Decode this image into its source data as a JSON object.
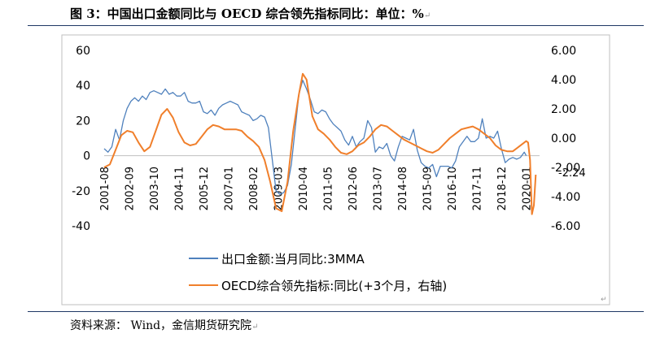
{
  "header": {
    "title": "图 3：中国出口金额同比与 OECD 综合领先指标同比：单位：%",
    "title_mark": "↵"
  },
  "footer": {
    "source": "资料来源： Wind，金信期货研究院",
    "source_mark": "↵",
    "return_mark": "↵"
  },
  "chart_data": {
    "type": "line",
    "title": "",
    "left_axis": {
      "ylim": [
        -40,
        60
      ],
      "ticks": [
        "60",
        "40",
        "20",
        "0",
        "-20",
        "-40"
      ]
    },
    "right_axis": {
      "ylim": [
        -6,
        6
      ],
      "ticks": [
        "6.00",
        "4.00",
        "2.00",
        "0.00",
        "-2.00",
        "-4.00",
        "-6.00"
      ]
    },
    "x_ticks": [
      "2001-08",
      "2002-09",
      "2003-10",
      "2004-11",
      "2005-12",
      "2007-01",
      "2008-02",
      "2009-03",
      "2010-04",
      "2011-05",
      "2012-06",
      "2013-07",
      "2014-08",
      "2015-09",
      "2016-10",
      "2017-11",
      "2018-12",
      "2020-01"
    ],
    "annotation": "-2.24",
    "grid": false,
    "legend_position": "bottom",
    "colors": {
      "export": "#4f81bd",
      "oecd": "#f07f2b"
    },
    "series": [
      {
        "name": "出口金额:当月同比:3MMA",
        "axis": "left",
        "color": "#4f81bd",
        "points": [
          [
            "2001-08",
            4
          ],
          [
            "2001-10",
            2
          ],
          [
            "2001-12",
            5
          ],
          [
            "2002-02",
            15
          ],
          [
            "2002-04",
            9
          ],
          [
            "2002-06",
            20
          ],
          [
            "2002-08",
            27
          ],
          [
            "2002-10",
            31
          ],
          [
            "2002-12",
            33
          ],
          [
            "2003-02",
            31
          ],
          [
            "2003-04",
            34
          ],
          [
            "2003-06",
            32
          ],
          [
            "2003-08",
            36
          ],
          [
            "2003-10",
            37
          ],
          [
            "2003-12",
            36
          ],
          [
            "2004-02",
            35
          ],
          [
            "2004-04",
            38
          ],
          [
            "2004-06",
            35
          ],
          [
            "2004-08",
            36
          ],
          [
            "2004-10",
            34
          ],
          [
            "2004-12",
            34
          ],
          [
            "2005-02",
            36
          ],
          [
            "2005-04",
            31
          ],
          [
            "2005-06",
            30
          ],
          [
            "2005-08",
            30
          ],
          [
            "2005-10",
            31
          ],
          [
            "2005-12",
            25
          ],
          [
            "2006-02",
            24
          ],
          [
            "2006-04",
            26
          ],
          [
            "2006-06",
            23
          ],
          [
            "2006-08",
            27
          ],
          [
            "2006-10",
            29
          ],
          [
            "2006-12",
            30
          ],
          [
            "2007-02",
            31
          ],
          [
            "2007-04",
            30
          ],
          [
            "2007-06",
            29
          ],
          [
            "2007-08",
            25
          ],
          [
            "2007-10",
            24
          ],
          [
            "2007-12",
            23
          ],
          [
            "2008-02",
            20
          ],
          [
            "2008-04",
            21
          ],
          [
            "2008-06",
            23
          ],
          [
            "2008-08",
            22
          ],
          [
            "2008-10",
            16
          ],
          [
            "2008-12",
            -2
          ],
          [
            "2009-02",
            -20
          ],
          [
            "2009-04",
            -22
          ],
          [
            "2009-06",
            -21
          ],
          [
            "2009-08",
            -17
          ],
          [
            "2009-10",
            -5
          ],
          [
            "2009-12",
            15
          ],
          [
            "2010-02",
            35
          ],
          [
            "2010-04",
            43
          ],
          [
            "2010-06",
            38
          ],
          [
            "2010-08",
            32
          ],
          [
            "2010-10",
            25
          ],
          [
            "2010-12",
            24
          ],
          [
            "2011-02",
            26
          ],
          [
            "2011-04",
            25
          ],
          [
            "2011-06",
            21
          ],
          [
            "2011-08",
            18
          ],
          [
            "2011-10",
            16
          ],
          [
            "2011-12",
            14
          ],
          [
            "2012-02",
            9
          ],
          [
            "2012-04",
            6
          ],
          [
            "2012-06",
            11
          ],
          [
            "2012-08",
            5
          ],
          [
            "2012-10",
            8
          ],
          [
            "2012-12",
            10
          ],
          [
            "2013-02",
            20
          ],
          [
            "2013-04",
            16
          ],
          [
            "2013-06",
            2
          ],
          [
            "2013-08",
            5
          ],
          [
            "2013-10",
            4
          ],
          [
            "2013-12",
            7
          ],
          [
            "2014-02",
            0
          ],
          [
            "2014-04",
            -3
          ],
          [
            "2014-06",
            5
          ],
          [
            "2014-08",
            11
          ],
          [
            "2014-10",
            10
          ],
          [
            "2014-12",
            9
          ],
          [
            "2015-02",
            15
          ],
          [
            "2015-04",
            3
          ],
          [
            "2015-06",
            -4
          ],
          [
            "2015-08",
            -6
          ],
          [
            "2015-10",
            -7
          ],
          [
            "2015-12",
            -5
          ],
          [
            "2016-02",
            -12
          ],
          [
            "2016-04",
            -6
          ],
          [
            "2016-06",
            -6
          ],
          [
            "2016-08",
            -6
          ],
          [
            "2016-10",
            -7
          ],
          [
            "2016-12",
            -3
          ],
          [
            "2017-02",
            5
          ],
          [
            "2017-04",
            8
          ],
          [
            "2017-06",
            11
          ],
          [
            "2017-08",
            8
          ],
          [
            "2017-10",
            8
          ],
          [
            "2017-12",
            10
          ],
          [
            "2018-02",
            21
          ],
          [
            "2018-04",
            10
          ],
          [
            "2018-06",
            11
          ],
          [
            "2018-08",
            10
          ],
          [
            "2018-10",
            14
          ],
          [
            "2018-12",
            4
          ],
          [
            "2019-02",
            -4
          ],
          [
            "2019-04",
            -2
          ],
          [
            "2019-06",
            -1
          ],
          [
            "2019-08",
            -2
          ],
          [
            "2019-10",
            -1
          ],
          [
            "2019-12",
            2
          ],
          [
            "2020-01",
            0
          ]
        ]
      },
      {
        "name": "OECD综合领先指标:同比(+3个月，右轴)",
        "axis": "right",
        "color": "#f07f2b",
        "points": [
          [
            "2001-08",
            -2.0
          ],
          [
            "2001-11",
            -1.8
          ],
          [
            "2002-02",
            -0.8
          ],
          [
            "2002-05",
            0.2
          ],
          [
            "2002-08",
            0.5
          ],
          [
            "2002-11",
            0.4
          ],
          [
            "2003-02",
            -0.3
          ],
          [
            "2003-05",
            -0.9
          ],
          [
            "2003-08",
            -0.6
          ],
          [
            "2003-11",
            0.5
          ],
          [
            "2004-02",
            1.6
          ],
          [
            "2004-05",
            2.0
          ],
          [
            "2004-08",
            1.4
          ],
          [
            "2004-11",
            0.4
          ],
          [
            "2005-02",
            -0.3
          ],
          [
            "2005-05",
            -0.5
          ],
          [
            "2005-08",
            -0.4
          ],
          [
            "2005-11",
            0.1
          ],
          [
            "2006-02",
            0.6
          ],
          [
            "2006-05",
            0.9
          ],
          [
            "2006-08",
            0.8
          ],
          [
            "2006-11",
            0.6
          ],
          [
            "2007-02",
            0.6
          ],
          [
            "2007-05",
            0.6
          ],
          [
            "2007-08",
            0.5
          ],
          [
            "2007-11",
            0.1
          ],
          [
            "2008-02",
            -0.2
          ],
          [
            "2008-05",
            -0.6
          ],
          [
            "2008-08",
            -1.5
          ],
          [
            "2008-11",
            -3.0
          ],
          [
            "2009-02",
            -4.8
          ],
          [
            "2009-05",
            -5.0
          ],
          [
            "2009-08",
            -3.0
          ],
          [
            "2009-11",
            0.5
          ],
          [
            "2010-02",
            3.0
          ],
          [
            "2010-04",
            4.4
          ],
          [
            "2010-06",
            4.0
          ],
          [
            "2010-09",
            1.5
          ],
          [
            "2010-12",
            0.6
          ],
          [
            "2011-03",
            0.3
          ],
          [
            "2011-06",
            -0.1
          ],
          [
            "2011-09",
            -0.6
          ],
          [
            "2011-12",
            -1.0
          ],
          [
            "2012-03",
            -1.1
          ],
          [
            "2012-06",
            -0.9
          ],
          [
            "2012-09",
            -0.5
          ],
          [
            "2012-12",
            -0.3
          ],
          [
            "2013-03",
            0.1
          ],
          [
            "2013-06",
            0.6
          ],
          [
            "2013-09",
            0.9
          ],
          [
            "2013-12",
            0.8
          ],
          [
            "2014-03",
            0.5
          ],
          [
            "2014-06",
            0.2
          ],
          [
            "2014-09",
            -0.1
          ],
          [
            "2014-12",
            -0.3
          ],
          [
            "2015-03",
            -0.5
          ],
          [
            "2015-06",
            -0.7
          ],
          [
            "2015-09",
            -0.9
          ],
          [
            "2015-12",
            -1.0
          ],
          [
            "2016-03",
            -0.8
          ],
          [
            "2016-06",
            -0.4
          ],
          [
            "2016-09",
            0.0
          ],
          [
            "2016-12",
            0.3
          ],
          [
            "2017-03",
            0.6
          ],
          [
            "2017-06",
            0.7
          ],
          [
            "2017-09",
            0.8
          ],
          [
            "2017-12",
            0.6
          ],
          [
            "2018-03",
            0.3
          ],
          [
            "2018-06",
            0.0
          ],
          [
            "2018-09",
            -0.5
          ],
          [
            "2018-12",
            -0.8
          ],
          [
            "2019-03",
            -0.9
          ],
          [
            "2019-06",
            -0.9
          ],
          [
            "2019-09",
            -0.6
          ],
          [
            "2019-12",
            -0.3
          ],
          [
            "2020-01",
            -0.2
          ],
          [
            "2020-02",
            -0.3
          ],
          [
            "2020-03",
            -1.5
          ],
          [
            "2020-04",
            -5.2
          ],
          [
            "2020-05",
            -4.6
          ],
          [
            "2020-06",
            -2.5
          ]
        ]
      }
    ]
  }
}
